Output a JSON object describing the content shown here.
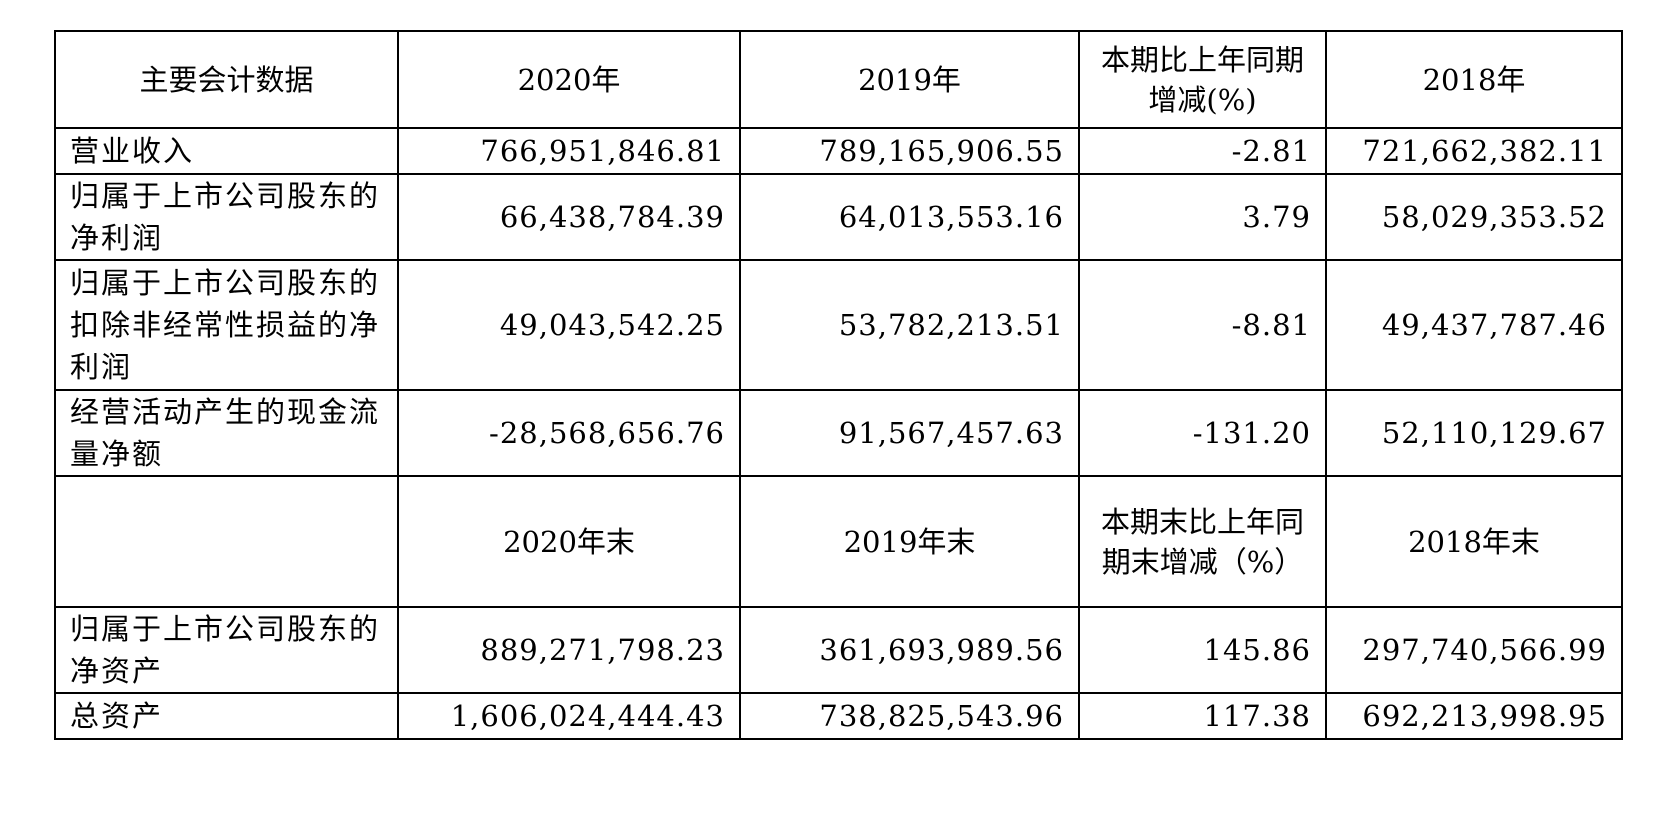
{
  "header": {
    "label": "主要会计数据",
    "y2020": "2020年",
    "y2019": "2019年",
    "change": "本期比上年同期增减(%)",
    "y2018": "2018年"
  },
  "rows_flow": [
    {
      "label": "营业收入",
      "v2020": "766,951,846.81",
      "v2019": "789,165,906.55",
      "change": "-2.81",
      "v2018": "721,662,382.11"
    },
    {
      "label": "归属于上市公司股东的净利润",
      "v2020": "66,438,784.39",
      "v2019": "64,013,553.16",
      "change": "3.79",
      "v2018": "58,029,353.52"
    },
    {
      "label": "归属于上市公司股东的扣除非经常性损益的净利润",
      "v2020": "49,043,542.25",
      "v2019": "53,782,213.51",
      "change": "-8.81",
      "v2018": "49,437,787.46"
    },
    {
      "label": "经营活动产生的现金流量净额",
      "v2020": "-28,568,656.76",
      "v2019": "91,567,457.63",
      "change": "-131.20",
      "v2018": "52,110,129.67"
    }
  ],
  "header2": {
    "label": "",
    "y2020": "2020年末",
    "y2019": "2019年末",
    "change": "本期末比上年同期末增减（%）",
    "y2018": "2018年末"
  },
  "rows_stock": [
    {
      "label": "归属于上市公司股东的净资产",
      "v2020": "889,271,798.23",
      "v2019": "361,693,989.56",
      "change": "145.86",
      "v2018": "297,740,566.99"
    },
    {
      "label": "总资产",
      "v2020": "1,606,024,444.43",
      "v2019": "738,825,543.96",
      "change": "117.38",
      "v2018": "692,213,998.95"
    }
  ]
}
